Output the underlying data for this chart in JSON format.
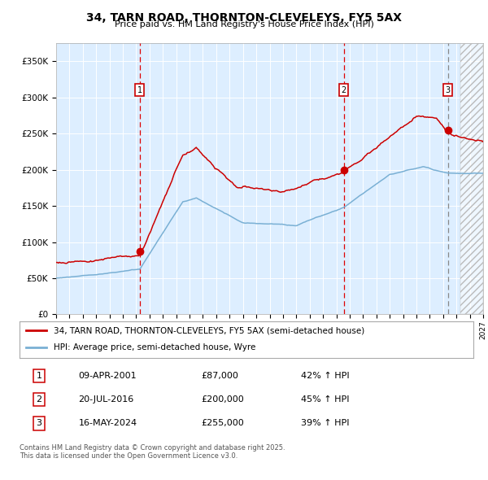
{
  "title": "34, TARN ROAD, THORNTON-CLEVELEYS, FY5 5AX",
  "subtitle": "Price paid vs. HM Land Registry's House Price Index (HPI)",
  "bg_color": "#ddeeff",
  "sale1_date": 2001.27,
  "sale1_price": 87000,
  "sale2_date": 2016.55,
  "sale2_price": 200000,
  "sale3_date": 2024.37,
  "sale3_price": 255000,
  "legend_line1": "34, TARN ROAD, THORNTON-CLEVELEYS, FY5 5AX (semi-detached house)",
  "legend_line2": "HPI: Average price, semi-detached house, Wyre",
  "table_data": [
    [
      "1",
      "09-APR-2001",
      "£87,000",
      "42% ↑ HPI"
    ],
    [
      "2",
      "20-JUL-2016",
      "£200,000",
      "45% ↑ HPI"
    ],
    [
      "3",
      "16-MAY-2024",
      "£255,000",
      "39% ↑ HPI"
    ]
  ],
  "footnote": "Contains HM Land Registry data © Crown copyright and database right 2025.\nThis data is licensed under the Open Government Licence v3.0.",
  "red_line_color": "#cc0000",
  "blue_line_color": "#7ab0d4",
  "ylim": [
    0,
    375000
  ],
  "xlim_start": 1995.0,
  "xlim_end": 2027.0,
  "future_start": 2025.3
}
